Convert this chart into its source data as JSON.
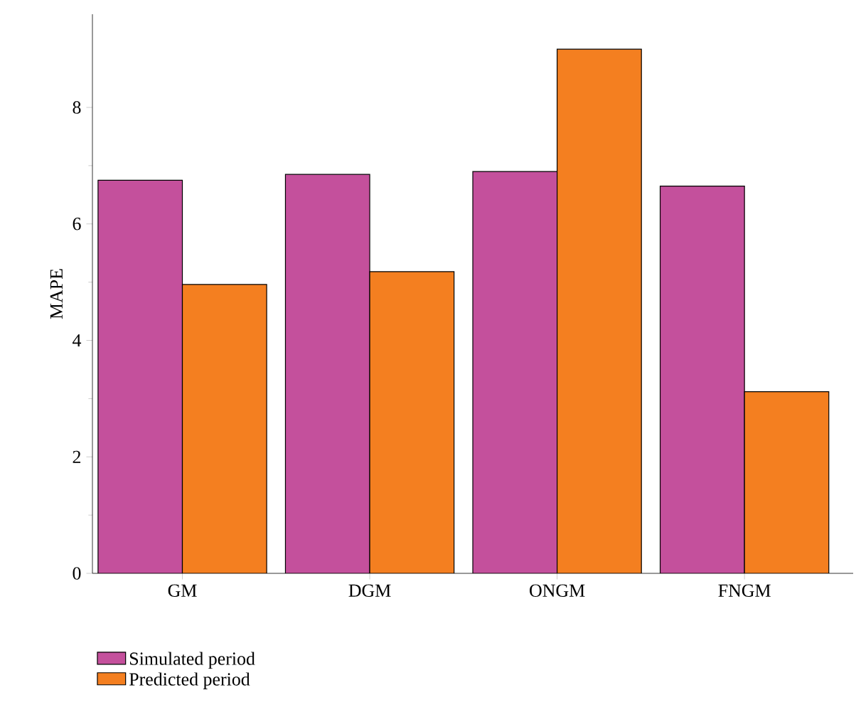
{
  "chart_data": {
    "type": "bar",
    "ylabel": "MAPE",
    "categories": [
      "GM",
      "DGM",
      "ONGM",
      "FNGM"
    ],
    "series": [
      {
        "name": "Simulated period",
        "color": "#c4509c",
        "values": [
          6.75,
          6.85,
          6.9,
          6.65
        ]
      },
      {
        "name": "Predicted period",
        "color": "#f47f20",
        "values": [
          4.96,
          5.18,
          9.0,
          3.12
        ]
      }
    ],
    "ylim": [
      0,
      9.6
    ],
    "yticks": [
      0,
      2,
      4,
      6,
      8
    ],
    "legend": "bottom left"
  }
}
